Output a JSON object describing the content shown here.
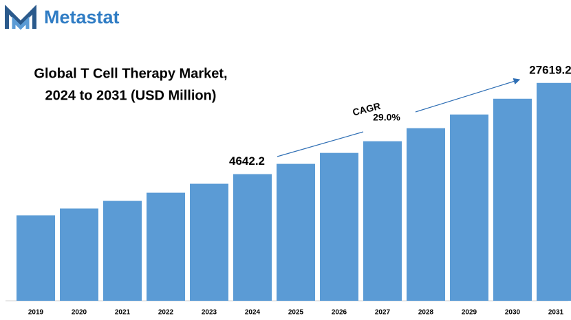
{
  "logo": "Metastat",
  "chart_data": {
    "type": "bar",
    "title": [
      "Global T Cell Therapy Market,",
      "2024 to 2031 (USD Million)"
    ],
    "categories": [
      "2019",
      "2020",
      "2021",
      "2022",
      "2023",
      "2024",
      "2025",
      "2026",
      "2027",
      "2028",
      "2029",
      "2030",
      "2031"
    ],
    "values": [
      2075,
      2372,
      2750,
      3228,
      3846,
      4642.2,
      5675,
      7031,
      8831,
      11400,
      14900,
      20280,
      27619.2
    ],
    "color": "#5b9bd5",
    "log": true,
    "ylim": [
      390,
      60000
    ],
    "labeled": [
      5,
      12
    ],
    "cagr": {
      "label": "CAGR",
      "value": "29.0%"
    }
  }
}
